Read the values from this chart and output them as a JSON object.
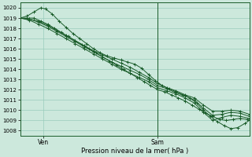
{
  "background_color": "#cce8dc",
  "plot_bg_color": "#cce8dc",
  "grid_color": "#99ccbb",
  "line_color": "#1a5c2a",
  "ylim": [
    1007.5,
    1020.5
  ],
  "yticks": [
    1008,
    1009,
    1010,
    1011,
    1012,
    1013,
    1014,
    1015,
    1016,
    1017,
    1018,
    1019,
    1020
  ],
  "xlabel": "Pression niveau de la mer( hPa )",
  "xtick_labels": [
    "Ven",
    "Sam"
  ],
  "xtick_positions": [
    0.1,
    0.6
  ],
  "vline_x": 0.6,
  "figsize": [
    3.2,
    2.0
  ],
  "dpi": 100,
  "lines": [
    [
      0.0,
      1019.0,
      0.03,
      1019.0,
      0.06,
      1019.0,
      0.09,
      1018.7,
      0.12,
      1018.4,
      0.15,
      1018.0,
      0.18,
      1017.6,
      0.21,
      1017.2,
      0.24,
      1016.8,
      0.27,
      1016.4,
      0.3,
      1016.0,
      0.33,
      1015.6,
      0.36,
      1015.2,
      0.39,
      1014.8,
      0.42,
      1014.4,
      0.45,
      1014.0,
      0.48,
      1013.6,
      0.51,
      1013.2,
      0.54,
      1012.8,
      0.57,
      1012.4,
      0.6,
      1012.0,
      0.63,
      1011.8,
      0.66,
      1011.5,
      0.69,
      1011.2,
      0.72,
      1010.9,
      0.75,
      1010.5,
      0.78,
      1010.1,
      0.81,
      1009.7,
      0.84,
      1009.4,
      0.87,
      1009.1,
      0.9,
      1009.0,
      0.93,
      1009.1,
      0.96,
      1009.2,
      0.99,
      1009.1,
      1.0,
      1009.0
    ],
    [
      0.0,
      1019.0,
      0.03,
      1019.2,
      0.06,
      1019.6,
      0.09,
      1020.0,
      0.11,
      1019.9,
      0.14,
      1019.4,
      0.17,
      1018.7,
      0.2,
      1018.1,
      0.23,
      1017.5,
      0.26,
      1017.0,
      0.29,
      1016.5,
      0.32,
      1016.0,
      0.35,
      1015.6,
      0.38,
      1015.3,
      0.41,
      1015.1,
      0.44,
      1014.9,
      0.47,
      1014.7,
      0.5,
      1014.5,
      0.53,
      1014.1,
      0.56,
      1013.5,
      0.59,
      1012.9,
      0.62,
      1012.4,
      0.65,
      1012.1,
      0.68,
      1011.8,
      0.71,
      1011.5,
      0.74,
      1011.2,
      0.77,
      1010.7,
      0.8,
      1010.0,
      0.83,
      1009.4,
      0.86,
      1008.9,
      0.89,
      1008.5,
      0.92,
      1008.2,
      0.95,
      1008.3,
      0.98,
      1008.7,
      1.0,
      1009.0
    ],
    [
      0.0,
      1019.0,
      0.04,
      1018.8,
      0.08,
      1018.4,
      0.12,
      1018.0,
      0.16,
      1017.5,
      0.2,
      1017.0,
      0.24,
      1016.5,
      0.28,
      1016.0,
      0.32,
      1015.5,
      0.36,
      1015.0,
      0.4,
      1014.5,
      0.44,
      1014.0,
      0.48,
      1013.6,
      0.52,
      1013.2,
      0.56,
      1012.8,
      0.6,
      1012.2,
      0.64,
      1011.9,
      0.68,
      1011.6,
      0.72,
      1011.2,
      0.76,
      1010.7,
      0.8,
      1009.8,
      0.84,
      1009.0,
      0.88,
      1009.3,
      0.92,
      1009.5,
      0.96,
      1009.4,
      1.0,
      1009.2
    ],
    [
      0.0,
      1019.0,
      0.04,
      1018.9,
      0.08,
      1018.6,
      0.12,
      1018.2,
      0.16,
      1017.7,
      0.2,
      1017.2,
      0.24,
      1016.7,
      0.28,
      1016.2,
      0.32,
      1015.7,
      0.36,
      1015.2,
      0.4,
      1014.7,
      0.44,
      1014.3,
      0.48,
      1013.9,
      0.52,
      1013.5,
      0.56,
      1013.0,
      0.6,
      1012.4,
      0.64,
      1012.1,
      0.68,
      1011.7,
      0.72,
      1011.4,
      0.76,
      1011.0,
      0.8,
      1010.2,
      0.84,
      1009.5,
      0.88,
      1009.6,
      0.92,
      1009.8,
      0.96,
      1009.7,
      1.0,
      1009.4
    ],
    [
      0.0,
      1019.0,
      0.04,
      1018.9,
      0.08,
      1018.7,
      0.12,
      1018.3,
      0.16,
      1017.8,
      0.2,
      1017.3,
      0.24,
      1016.8,
      0.28,
      1016.3,
      0.32,
      1015.8,
      0.36,
      1015.4,
      0.4,
      1015.0,
      0.44,
      1014.6,
      0.48,
      1014.2,
      0.52,
      1013.7,
      0.56,
      1013.2,
      0.6,
      1012.6,
      0.64,
      1012.2,
      0.68,
      1011.9,
      0.72,
      1011.5,
      0.76,
      1011.2,
      0.8,
      1010.5,
      0.84,
      1009.9,
      0.88,
      1009.9,
      0.92,
      1010.0,
      0.96,
      1009.9,
      1.0,
      1009.6
    ]
  ]
}
